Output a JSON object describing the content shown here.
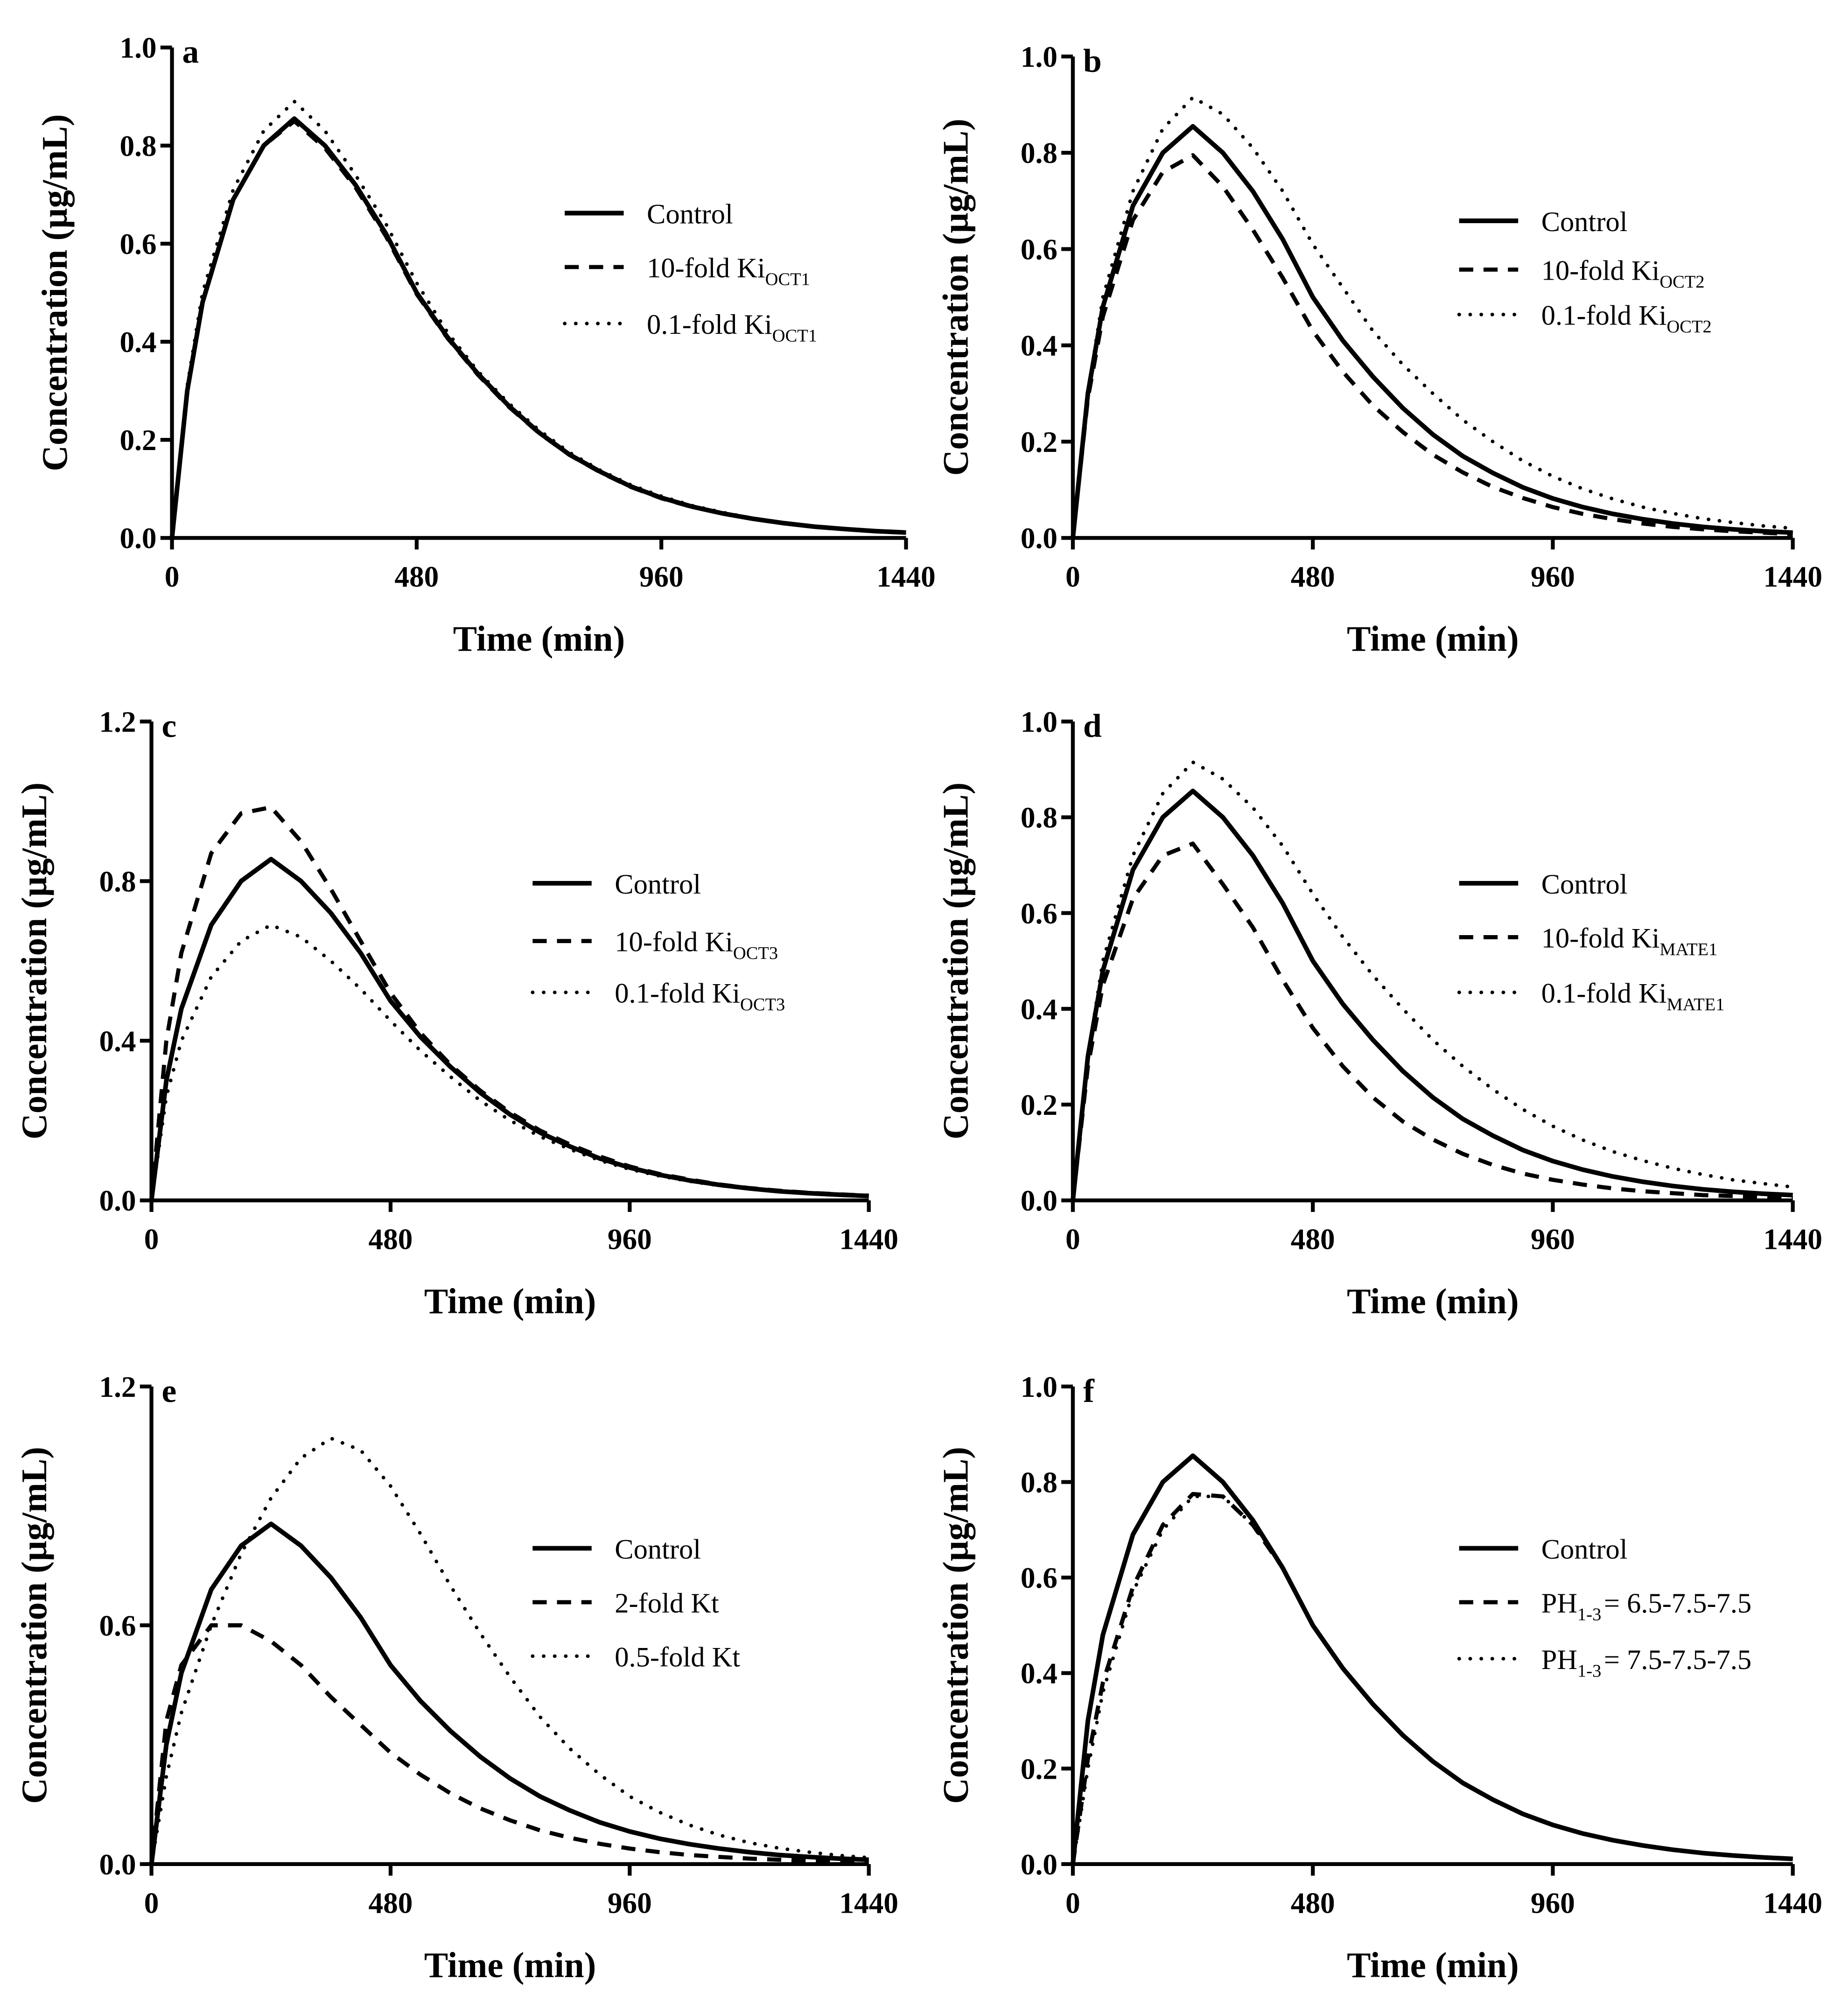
{
  "chart_data": [
    {
      "type": "line",
      "panel": "a",
      "xlabel": "Time (min)",
      "ylabel": "Concentration (µg/mL)",
      "xlim": [
        0,
        1440
      ],
      "ylim": [
        0,
        1.0
      ],
      "xticks": [
        "0",
        "480",
        "960",
        "1440"
      ],
      "yticks": [
        "0.0",
        "0.2",
        "0.4",
        "0.6",
        "0.8",
        "1.0"
      ],
      "x": [
        0,
        30,
        60,
        120,
        180,
        240,
        300,
        360,
        420,
        480,
        540,
        600,
        660,
        720,
        780,
        840,
        900,
        960,
        1020,
        1080,
        1140,
        1200,
        1260,
        1320,
        1380,
        1440
      ],
      "series": [
        {
          "name": "Control",
          "name_sub": "",
          "style": "solid",
          "values": [
            0,
            0.3,
            0.48,
            0.69,
            0.8,
            0.855,
            0.8,
            0.72,
            0.62,
            0.5,
            0.41,
            0.335,
            0.27,
            0.215,
            0.17,
            0.135,
            0.105,
            0.082,
            0.064,
            0.05,
            0.039,
            0.03,
            0.023,
            0.018,
            0.014,
            0.011
          ]
        },
        {
          "name": "10-fold Ki",
          "name_sub": "OCT1",
          "style": "dashed",
          "values": [
            0,
            0.3,
            0.48,
            0.69,
            0.8,
            0.85,
            0.795,
            0.715,
            0.615,
            0.497,
            0.408,
            0.333,
            0.268,
            0.214,
            0.169,
            0.134,
            0.104,
            0.081,
            0.063,
            0.05,
            0.039,
            0.03,
            0.023,
            0.018,
            0.014,
            0.011
          ]
        },
        {
          "name": "0.1-fold Ki",
          "name_sub": "OCT1",
          "style": "dotted",
          "values": [
            0,
            0.31,
            0.5,
            0.71,
            0.83,
            0.89,
            0.83,
            0.74,
            0.64,
            0.52,
            0.42,
            0.34,
            0.275,
            0.22,
            0.174,
            0.138,
            0.108,
            0.085,
            0.066,
            0.052,
            0.04,
            0.031,
            0.024,
            0.018,
            0.014,
            0.011
          ]
        }
      ]
    },
    {
      "type": "line",
      "panel": "b",
      "xlabel": "Time (min)",
      "ylabel": "Concentration (µg/mL)",
      "xlim": [
        0,
        1440
      ],
      "ylim": [
        0,
        1.0
      ],
      "xticks": [
        "0",
        "480",
        "960",
        "1440"
      ],
      "yticks": [
        "0.0",
        "0.2",
        "0.4",
        "0.6",
        "0.8",
        "1.0"
      ],
      "x": [
        0,
        30,
        60,
        120,
        180,
        240,
        300,
        360,
        420,
        480,
        540,
        600,
        660,
        720,
        780,
        840,
        900,
        960,
        1020,
        1080,
        1140,
        1200,
        1260,
        1320,
        1380,
        1440
      ],
      "series": [
        {
          "name": "Control",
          "name_sub": "",
          "style": "solid",
          "values": [
            0,
            0.3,
            0.48,
            0.69,
            0.8,
            0.855,
            0.8,
            0.72,
            0.62,
            0.5,
            0.41,
            0.335,
            0.27,
            0.215,
            0.17,
            0.135,
            0.105,
            0.082,
            0.064,
            0.05,
            0.039,
            0.03,
            0.023,
            0.018,
            0.014,
            0.011
          ]
        },
        {
          "name": "10-fold Ki",
          "name_sub": "OCT2",
          "style": "dashed",
          "values": [
            0,
            0.29,
            0.46,
            0.66,
            0.76,
            0.795,
            0.73,
            0.64,
            0.54,
            0.43,
            0.345,
            0.275,
            0.22,
            0.173,
            0.136,
            0.106,
            0.083,
            0.064,
            0.05,
            0.039,
            0.03,
            0.023,
            0.018,
            0.014,
            0.011,
            0.008
          ]
        },
        {
          "name": "0.1-fold Ki",
          "name_sub": "OCT2",
          "style": "dotted",
          "values": [
            0,
            0.3,
            0.5,
            0.72,
            0.85,
            0.915,
            0.88,
            0.81,
            0.72,
            0.61,
            0.52,
            0.43,
            0.36,
            0.3,
            0.245,
            0.2,
            0.16,
            0.128,
            0.102,
            0.081,
            0.064,
            0.051,
            0.04,
            0.032,
            0.025,
            0.02
          ]
        }
      ]
    },
    {
      "type": "line",
      "panel": "c",
      "xlabel": "Time (min)",
      "ylabel": "Concentration (µg/mL)",
      "xlim": [
        0,
        1440
      ],
      "ylim": [
        0,
        1.2
      ],
      "xticks": [
        "0",
        "480",
        "960",
        "1440"
      ],
      "yticks": [
        "0.0",
        "0.4",
        "0.8",
        "1.2"
      ],
      "x": [
        0,
        30,
        60,
        120,
        180,
        240,
        300,
        360,
        420,
        480,
        540,
        600,
        660,
        720,
        780,
        840,
        900,
        960,
        1020,
        1080,
        1140,
        1200,
        1260,
        1320,
        1380,
        1440
      ],
      "series": [
        {
          "name": "Control",
          "name_sub": "",
          "style": "solid",
          "values": [
            0,
            0.3,
            0.48,
            0.69,
            0.8,
            0.855,
            0.8,
            0.72,
            0.62,
            0.5,
            0.41,
            0.335,
            0.27,
            0.215,
            0.17,
            0.135,
            0.105,
            0.082,
            0.064,
            0.05,
            0.039,
            0.03,
            0.023,
            0.018,
            0.014,
            0.011
          ]
        },
        {
          "name": "10-fold Ki",
          "name_sub": "OCT3",
          "style": "dashed",
          "values": [
            0,
            0.4,
            0.62,
            0.87,
            0.97,
            0.985,
            0.9,
            0.78,
            0.65,
            0.52,
            0.42,
            0.34,
            0.275,
            0.22,
            0.175,
            0.14,
            0.11,
            0.085,
            0.066,
            0.052,
            0.04,
            0.031,
            0.024,
            0.019,
            0.015,
            0.012
          ]
        },
        {
          "name": "0.1-fold Ki",
          "name_sub": "OCT3",
          "style": "dotted",
          "values": [
            0,
            0.26,
            0.4,
            0.56,
            0.65,
            0.69,
            0.66,
            0.6,
            0.53,
            0.45,
            0.375,
            0.31,
            0.25,
            0.2,
            0.16,
            0.128,
            0.1,
            0.078,
            0.061,
            0.048,
            0.037,
            0.029,
            0.022,
            0.017,
            0.013,
            0.01
          ]
        }
      ]
    },
    {
      "type": "line",
      "panel": "d",
      "xlabel": "Time (min)",
      "ylabel": "Concentration (µg/mL)",
      "xlim": [
        0,
        1440
      ],
      "ylim": [
        0,
        1.0
      ],
      "xticks": [
        "0",
        "480",
        "960",
        "1440"
      ],
      "yticks": [
        "0.0",
        "0.2",
        "0.4",
        "0.6",
        "0.8",
        "1.0"
      ],
      "x": [
        0,
        30,
        60,
        120,
        180,
        240,
        300,
        360,
        420,
        480,
        540,
        600,
        660,
        720,
        780,
        840,
        900,
        960,
        1020,
        1080,
        1140,
        1200,
        1260,
        1320,
        1380,
        1440
      ],
      "series": [
        {
          "name": "Control",
          "name_sub": "",
          "style": "solid",
          "values": [
            0,
            0.3,
            0.48,
            0.69,
            0.8,
            0.855,
            0.8,
            0.72,
            0.62,
            0.5,
            0.41,
            0.335,
            0.27,
            0.215,
            0.17,
            0.135,
            0.105,
            0.082,
            0.064,
            0.05,
            0.039,
            0.03,
            0.023,
            0.018,
            0.014,
            0.011
          ]
        },
        {
          "name": "10-fold Ki",
          "name_sub": "MATE1",
          "style": "dashed",
          "values": [
            0,
            0.28,
            0.45,
            0.63,
            0.72,
            0.745,
            0.66,
            0.57,
            0.46,
            0.36,
            0.28,
            0.215,
            0.165,
            0.127,
            0.097,
            0.074,
            0.056,
            0.043,
            0.033,
            0.025,
            0.019,
            0.015,
            0.011,
            0.009,
            0.007,
            0.005
          ]
        },
        {
          "name": "0.1-fold Ki",
          "name_sub": "MATE1",
          "style": "dotted",
          "values": [
            0,
            0.3,
            0.5,
            0.72,
            0.85,
            0.915,
            0.88,
            0.82,
            0.74,
            0.64,
            0.55,
            0.47,
            0.4,
            0.335,
            0.28,
            0.232,
            0.19,
            0.155,
            0.126,
            0.102,
            0.083,
            0.067,
            0.054,
            0.043,
            0.035,
            0.028
          ]
        }
      ]
    },
    {
      "type": "line",
      "panel": "e",
      "xlabel": "Time (min)",
      "ylabel": "Concentration (µg/mL)",
      "xlim": [
        0,
        1440
      ],
      "ylim": [
        0,
        1.2
      ],
      "xticks": [
        "0",
        "480",
        "960",
        "1440"
      ],
      "yticks": [
        "0.0",
        "0.6",
        "1.2"
      ],
      "x": [
        0,
        30,
        60,
        120,
        180,
        240,
        300,
        360,
        420,
        480,
        540,
        600,
        660,
        720,
        780,
        840,
        900,
        960,
        1020,
        1080,
        1140,
        1200,
        1260,
        1320,
        1380,
        1440
      ],
      "series": [
        {
          "name": "Control",
          "name_sub": "",
          "style": "solid",
          "values": [
            0,
            0.3,
            0.48,
            0.69,
            0.8,
            0.855,
            0.8,
            0.72,
            0.62,
            0.5,
            0.41,
            0.335,
            0.27,
            0.215,
            0.17,
            0.135,
            0.105,
            0.082,
            0.064,
            0.05,
            0.039,
            0.03,
            0.023,
            0.018,
            0.014,
            0.011
          ]
        },
        {
          "name": "2-fold Kt",
          "name_sub": "",
          "style": "dashed",
          "values": [
            0,
            0.36,
            0.5,
            0.6,
            0.6,
            0.56,
            0.5,
            0.42,
            0.35,
            0.28,
            0.225,
            0.178,
            0.14,
            0.11,
            0.085,
            0.066,
            0.051,
            0.039,
            0.03,
            0.023,
            0.018,
            0.014,
            0.011,
            0.008,
            0.006,
            0.005
          ]
        },
        {
          "name": "0.5-fold Kt",
          "name_sub": "",
          "style": "dotted",
          "values": [
            0,
            0.22,
            0.38,
            0.6,
            0.78,
            0.92,
            1.02,
            1.07,
            1.04,
            0.95,
            0.83,
            0.7,
            0.58,
            0.47,
            0.37,
            0.29,
            0.225,
            0.17,
            0.13,
            0.098,
            0.073,
            0.054,
            0.04,
            0.03,
            0.022,
            0.016
          ]
        }
      ]
    },
    {
      "type": "line",
      "panel": "f",
      "xlabel": "Time (min)",
      "ylabel": "Concentration (µg/mL)",
      "xlim": [
        0,
        1440
      ],
      "ylim": [
        0,
        1.0
      ],
      "xticks": [
        "0",
        "480",
        "960",
        "1440"
      ],
      "yticks": [
        "0.0",
        "0.2",
        "0.4",
        "0.6",
        "0.8",
        "1.0"
      ],
      "x": [
        0,
        30,
        60,
        120,
        180,
        240,
        300,
        360,
        420,
        480,
        540,
        600,
        660,
        720,
        780,
        840,
        900,
        960,
        1020,
        1080,
        1140,
        1200,
        1260,
        1320,
        1380,
        1440
      ],
      "series": [
        {
          "name": "Control",
          "name_sub": "",
          "style": "solid",
          "values": [
            0,
            0.3,
            0.48,
            0.69,
            0.8,
            0.855,
            0.8,
            0.72,
            0.62,
            0.5,
            0.41,
            0.335,
            0.27,
            0.215,
            0.17,
            0.135,
            0.105,
            0.082,
            0.064,
            0.05,
            0.039,
            0.03,
            0.023,
            0.018,
            0.014,
            0.011
          ]
        },
        {
          "name": "PH",
          "name_sub": "1-3",
          "name_suffix": "= 6.5-7.5-7.5",
          "style": "dashed",
          "values": [
            0,
            0.22,
            0.38,
            0.58,
            0.71,
            0.775,
            0.77,
            0.71,
            0.62,
            0.5,
            0.41,
            0.335,
            0.27,
            0.215,
            0.17,
            0.135,
            0.105,
            0.082,
            0.064,
            0.05,
            0.039,
            0.03,
            0.023,
            0.018,
            0.014,
            0.011
          ]
        },
        {
          "name": "PH",
          "name_sub": "1-3",
          "name_suffix": "= 7.5-7.5-7.5",
          "style": "dotted",
          "values": [
            0,
            0.2,
            0.36,
            0.57,
            0.7,
            0.77,
            0.77,
            0.71,
            0.62,
            0.5,
            0.41,
            0.335,
            0.27,
            0.215,
            0.17,
            0.135,
            0.105,
            0.082,
            0.064,
            0.05,
            0.039,
            0.03,
            0.023,
            0.018,
            0.014,
            0.011
          ]
        }
      ]
    }
  ]
}
